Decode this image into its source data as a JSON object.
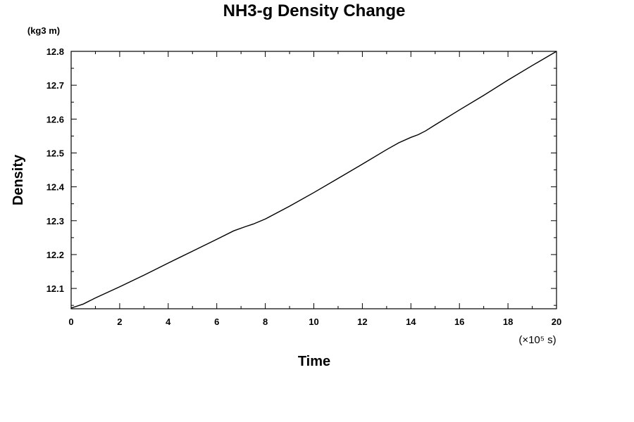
{
  "chart_data": {
    "type": "line",
    "title": "NH3-g Density Change",
    "xlabel": "Time",
    "ylabel": "Density",
    "y_unit": "(kg3 m)",
    "x_scale_label": "(×10⁵ s)",
    "x_ticks": [
      "0",
      "2",
      "4",
      "6",
      "8",
      "10",
      "12",
      "14",
      "16",
      "18",
      "20"
    ],
    "y_ticks": [
      "12.1",
      "12.2",
      "12.3",
      "12.4",
      "12.5",
      "12.6",
      "12.7",
      "12.8"
    ],
    "xlim": [
      0,
      20
    ],
    "ylim": [
      12.04,
      12.8
    ],
    "grid": false,
    "series": [
      {
        "color": "#000000",
        "x": [
          0,
          0.5,
          1,
          2,
          3,
          4,
          5,
          6,
          6.7,
          7.2,
          7.5,
          8,
          9,
          10,
          11,
          12,
          13,
          13.5,
          14,
          14.3,
          14.6,
          15,
          16,
          17,
          18,
          19,
          20
        ],
        "y": [
          12.042,
          12.054,
          12.072,
          12.105,
          12.139,
          12.175,
          12.21,
          12.245,
          12.27,
          12.283,
          12.29,
          12.305,
          12.343,
          12.383,
          12.425,
          12.467,
          12.51,
          12.53,
          12.546,
          12.554,
          12.565,
          12.583,
          12.627,
          12.67,
          12.715,
          12.758,
          12.8
        ]
      }
    ]
  }
}
